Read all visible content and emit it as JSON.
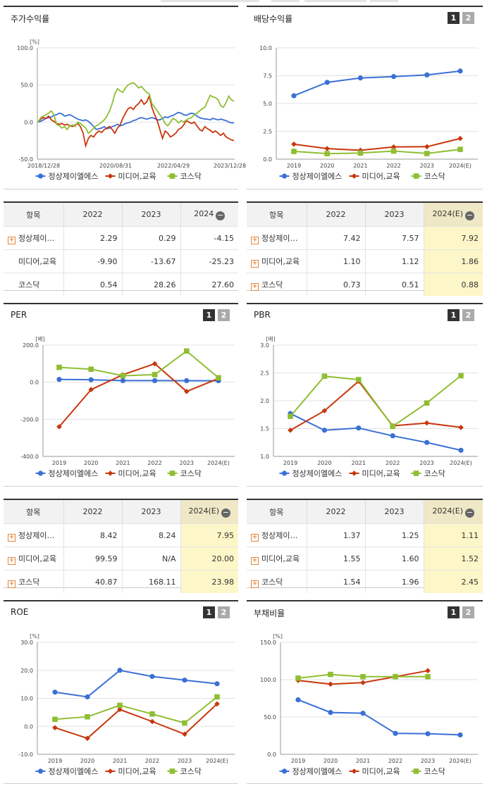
{
  "legend": [
    "정상제이엘에스",
    "미디어,교육",
    "코스닥"
  ],
  "colors": {
    "s1": "#3a6fd6",
    "s2": "#c9360c",
    "s3": "#8fbe33"
  },
  "btn1": "1",
  "btn2": "2",
  "panels": {
    "stock": {
      "title": "주가수익률"
    },
    "div": {
      "title": "배당수익률"
    },
    "per": {
      "title": "PER"
    },
    "pbr": {
      "title": "PBR"
    },
    "roe": {
      "title": "ROE"
    },
    "debt": {
      "title": "부채비율"
    }
  },
  "chart_data": [
    {
      "id": "stock",
      "type": "line",
      "unit": "[%]",
      "ylim": [
        -50,
        100
      ],
      "yticks": [
        "100.0",
        "50.0",
        "0.0",
        "-50.0"
      ],
      "xlabels": [
        "2018/12/28",
        "2020/08/31",
        "2022/04/29",
        "2023/12/28"
      ],
      "series": [
        {
          "name": "정상제이엘에스",
          "values": [
            0,
            1,
            3,
            5,
            6,
            7,
            9,
            10,
            12,
            11,
            8,
            9,
            10,
            8,
            6,
            4,
            3,
            2,
            3,
            1,
            -2,
            -6,
            -10,
            -9,
            -8,
            -6,
            -9,
            -8,
            -6,
            -5,
            -3,
            -5,
            -4,
            -2,
            -1,
            0,
            2,
            3,
            5,
            6,
            5,
            4,
            5,
            6,
            5,
            3,
            3,
            5,
            7,
            6,
            8,
            9,
            11,
            13,
            12,
            10,
            9,
            11,
            12,
            11,
            8,
            6,
            5,
            4,
            4,
            3,
            5,
            4,
            3,
            4,
            3,
            2,
            0,
            -1,
            -1
          ]
        },
        {
          "name": "미디어,교육",
          "values": [
            0,
            4,
            6,
            5,
            8,
            3,
            1,
            -2,
            -3,
            -2,
            -4,
            -3,
            -5,
            -6,
            -4,
            -2,
            -6,
            -15,
            -32,
            -22,
            -18,
            -20,
            -15,
            -12,
            -14,
            -10,
            -8,
            -6,
            -10,
            -15,
            -8,
            -4,
            5,
            12,
            18,
            20,
            17,
            22,
            25,
            30,
            24,
            27,
            35,
            20,
            10,
            2,
            -10,
            -22,
            -12,
            -15,
            -20,
            -18,
            -15,
            -10,
            -8,
            -4,
            2,
            0,
            -2,
            0,
            -5,
            -10,
            -12,
            -6,
            -9,
            -11,
            -14,
            -12,
            -15,
            -18,
            -15,
            -20,
            -22,
            -24,
            -25
          ]
        },
        {
          "name": "코스닥",
          "values": [
            0,
            6,
            8,
            10,
            12,
            15,
            10,
            -3,
            -5,
            -8,
            -6,
            -10,
            -5,
            -4,
            -6,
            0,
            -2,
            -5,
            -8,
            -15,
            -12,
            -8,
            -5,
            -3,
            0,
            3,
            8,
            15,
            25,
            38,
            45,
            42,
            40,
            46,
            50,
            52,
            53,
            50,
            46,
            48,
            44,
            40,
            38,
            25,
            20,
            15,
            10,
            5,
            -2,
            -5,
            0,
            5,
            3,
            -1,
            2,
            0,
            3,
            5,
            6,
            10,
            12,
            15,
            18,
            20,
            28,
            36,
            34,
            33,
            30,
            22,
            20,
            26,
            35,
            30,
            28
          ]
        }
      ]
    },
    {
      "id": "div",
      "type": "line",
      "unit": "",
      "ylim": [
        0,
        10
      ],
      "yticks": [
        "10.0",
        "7.5",
        "5.0",
        "2.5",
        "0.0"
      ],
      "xlabels": [
        "2019",
        "2020",
        "2021",
        "2022",
        "2023",
        "2024(E)"
      ],
      "series": [
        {
          "name": "정상제이엘에스",
          "values": [
            5.7,
            6.9,
            7.3,
            7.42,
            7.57,
            7.92
          ]
        },
        {
          "name": "미디어,교육",
          "values": [
            1.35,
            0.95,
            0.8,
            1.1,
            1.12,
            1.86
          ]
        },
        {
          "name": "코스닥",
          "values": [
            0.7,
            0.5,
            0.55,
            0.73,
            0.51,
            0.88
          ]
        }
      ]
    },
    {
      "id": "per",
      "type": "line",
      "unit": "[배]",
      "ylim": [
        -400,
        200
      ],
      "yticks": [
        "200.0",
        "0.0",
        "-200.0",
        "-400.0"
      ],
      "xlabels": [
        "2019",
        "2020",
        "2021",
        "2022",
        "2023",
        "2024(E)"
      ],
      "series": [
        {
          "name": "정상제이엘에스",
          "values": [
            15,
            13,
            8.42,
            8.42,
            8.24,
            7.95
          ]
        },
        {
          "name": "미디어,교육",
          "values": [
            -240,
            -40,
            40,
            99.59,
            -50,
            20
          ]
        },
        {
          "name": "코스닥",
          "values": [
            80,
            70,
            35,
            40.87,
            168.11,
            23.98
          ]
        }
      ]
    },
    {
      "id": "pbr",
      "type": "line",
      "unit": "[배]",
      "ylim": [
        1.0,
        3.0
      ],
      "yticks": [
        "3.0",
        "2.5",
        "2.0",
        "1.5",
        "1.0"
      ],
      "xlabels": [
        "2019",
        "2020",
        "2021",
        "2022",
        "2023",
        "2024(E)"
      ],
      "series": [
        {
          "name": "정상제이엘에스",
          "values": [
            1.77,
            1.47,
            1.51,
            1.37,
            1.25,
            1.11
          ]
        },
        {
          "name": "미디어,교육",
          "values": [
            1.47,
            1.82,
            2.35,
            1.55,
            1.6,
            1.52
          ]
        },
        {
          "name": "코스닥",
          "values": [
            1.72,
            2.44,
            2.38,
            1.54,
            1.96,
            2.45
          ]
        }
      ]
    },
    {
      "id": "roe",
      "type": "line",
      "unit": "[%]",
      "ylim": [
        -10,
        30
      ],
      "yticks": [
        "30.0",
        "20.0",
        "10.0",
        "0.0",
        "-10.0"
      ],
      "xlabels": [
        "2019",
        "2020",
        "2021",
        "2022",
        "2023",
        "2024(E)"
      ],
      "series": [
        {
          "name": "정상제이엘에스",
          "values": [
            12.2,
            10.5,
            20.0,
            17.8,
            16.5,
            15.2
          ]
        },
        {
          "name": "미디어,교육",
          "values": [
            -0.5,
            -4.3,
            6.0,
            1.7,
            -2.8,
            8.0
          ]
        },
        {
          "name": "코스닥",
          "values": [
            2.5,
            3.4,
            7.5,
            4.4,
            1.2,
            10.5
          ]
        }
      ]
    },
    {
      "id": "debt",
      "type": "line",
      "unit": "[%]",
      "ylim": [
        0,
        150
      ],
      "yticks": [
        "150.0",
        "100.0",
        "50.0",
        "0.0"
      ],
      "xlabels": [
        "2019",
        "2020",
        "2021",
        "2022",
        "2023",
        "2024(E)"
      ],
      "series": [
        {
          "name": "정상제이엘에스",
          "values": [
            73,
            56,
            55,
            28,
            27.5,
            26
          ]
        },
        {
          "name": "미디어,교육",
          "values": [
            99,
            94,
            96,
            104,
            112,
            null
          ]
        },
        {
          "name": "코스닥",
          "values": [
            102,
            107,
            104,
            104,
            104,
            null
          ]
        }
      ]
    }
  ],
  "tables": {
    "stock": {
      "headers": [
        "항목",
        "2022",
        "2023",
        "2024"
      ],
      "rows": [
        {
          "name": "정상제이…",
          "plus": true,
          "values": [
            "2.29",
            "0.29",
            "-4.15"
          ]
        },
        {
          "name": "미디어,교육",
          "plus": false,
          "values": [
            "-9.90",
            "-13.67",
            "-25.23"
          ]
        },
        {
          "name": "코스닥",
          "plus": false,
          "values": [
            "0.54",
            "28.26",
            "27.60"
          ]
        }
      ]
    },
    "div": {
      "headers": [
        "항목",
        "2022",
        "2023",
        "2024(E)"
      ],
      "rows": [
        {
          "name": "정상제이…",
          "plus": true,
          "values": [
            "7.42",
            "7.57",
            "7.92"
          ]
        },
        {
          "name": "미디어,교육",
          "plus": true,
          "values": [
            "1.10",
            "1.12",
            "1.86"
          ]
        },
        {
          "name": "코스닥",
          "plus": true,
          "values": [
            "0.73",
            "0.51",
            "0.88"
          ]
        }
      ]
    },
    "per": {
      "headers": [
        "항목",
        "2022",
        "2023",
        "2024(E)"
      ],
      "rows": [
        {
          "name": "정상제이…",
          "plus": true,
          "values": [
            "8.42",
            "8.24",
            "7.95"
          ]
        },
        {
          "name": "미디어,교육",
          "plus": true,
          "values": [
            "99.59",
            "N/A",
            "20.00"
          ]
        },
        {
          "name": "코스닥",
          "plus": true,
          "values": [
            "40.87",
            "168.11",
            "23.98"
          ]
        }
      ]
    },
    "pbr": {
      "headers": [
        "항목",
        "2022",
        "2023",
        "2024(E)"
      ],
      "rows": [
        {
          "name": "정상제이…",
          "plus": true,
          "values": [
            "1.37",
            "1.25",
            "1.11"
          ]
        },
        {
          "name": "미디어,교육",
          "plus": true,
          "values": [
            "1.55",
            "1.60",
            "1.52"
          ]
        },
        {
          "name": "코스닥",
          "plus": true,
          "values": [
            "1.54",
            "1.96",
            "2.45"
          ]
        }
      ]
    }
  }
}
